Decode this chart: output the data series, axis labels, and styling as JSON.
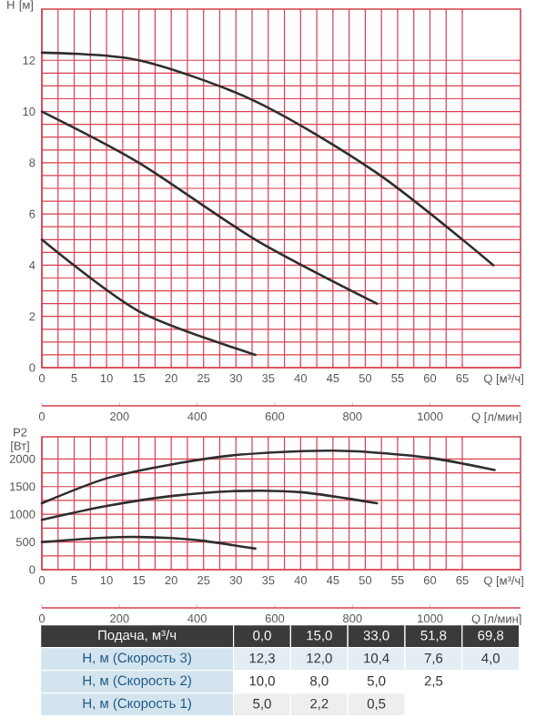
{
  "chart_data": [
    {
      "type": "line",
      "ylabel": "H [м]",
      "xlabel": "Q [м³/ч]",
      "x2label": "Q [л/мин]",
      "x": [
        0,
        15,
        33,
        51.8,
        69.8
      ],
      "series": [
        {
          "color": "#2e2e2e",
          "values": [
            12.3,
            12.0,
            10.4,
            7.6,
            4.0
          ]
        },
        {
          "color": "#2e2e2e",
          "values": [
            10.0,
            8.0,
            5.0,
            2.5,
            null
          ]
        },
        {
          "color": "#2e2e2e",
          "values": [
            5.0,
            2.2,
            0.5,
            null,
            null
          ]
        }
      ],
      "xlim": [
        0,
        74
      ],
      "xticks": [
        0,
        5,
        10,
        15,
        20,
        25,
        30,
        35,
        40,
        45,
        50,
        55,
        60,
        65
      ],
      "ylim": [
        0,
        14
      ],
      "yticks": [
        0,
        2,
        4,
        6,
        8,
        10,
        12
      ],
      "x2lim": [
        0,
        1233
      ],
      "x2ticks": [
        0,
        200,
        400,
        600,
        800,
        1000
      ],
      "grid": true
    },
    {
      "type": "line",
      "ylabel": "P2 [Вт]",
      "xlabel": "Q [м³/ч]",
      "x2label": "Q [л/мин]",
      "series": [
        {
          "color": "#2e2e2e",
          "x": [
            0,
            10,
            20,
            30,
            40,
            45,
            50,
            60,
            70
          ],
          "values": [
            1200,
            1650,
            1900,
            2070,
            2140,
            2150,
            2130,
            2020,
            1800
          ]
        },
        {
          "color": "#2e2e2e",
          "x": [
            0,
            10,
            20,
            30,
            40,
            51.8
          ],
          "values": [
            900,
            1150,
            1330,
            1420,
            1400,
            1200
          ]
        },
        {
          "color": "#2e2e2e",
          "x": [
            0,
            10,
            15,
            20,
            25,
            33
          ],
          "values": [
            500,
            580,
            590,
            570,
            520,
            380
          ]
        }
      ],
      "xlim": [
        0,
        74
      ],
      "xticks": [
        0,
        5,
        10,
        15,
        20,
        25,
        30,
        35,
        40,
        45,
        50,
        55,
        60,
        65
      ],
      "ylim": [
        0,
        2400
      ],
      "yticks": [
        0,
        500,
        1000,
        1500,
        2000
      ],
      "x2lim": [
        0,
        1233
      ],
      "x2ticks": [
        0,
        200,
        400,
        600,
        800,
        1000
      ],
      "grid": true
    },
    {
      "type": "other",
      "annotations": [
        "Подача, м³/ч",
        "0,0",
        "15,0",
        "33,0",
        "51,8",
        "69,8",
        "Н, м (Скорость 3)",
        "12,3",
        "12,0",
        "10,4",
        "7,6",
        "4,0",
        "Н, м (Скорость 2)",
        "10,0",
        "8,0",
        "5,0",
        "2,5",
        "Н, м (Скорость 1)",
        "5,0",
        "2,2",
        "0,5"
      ]
    }
  ]
}
